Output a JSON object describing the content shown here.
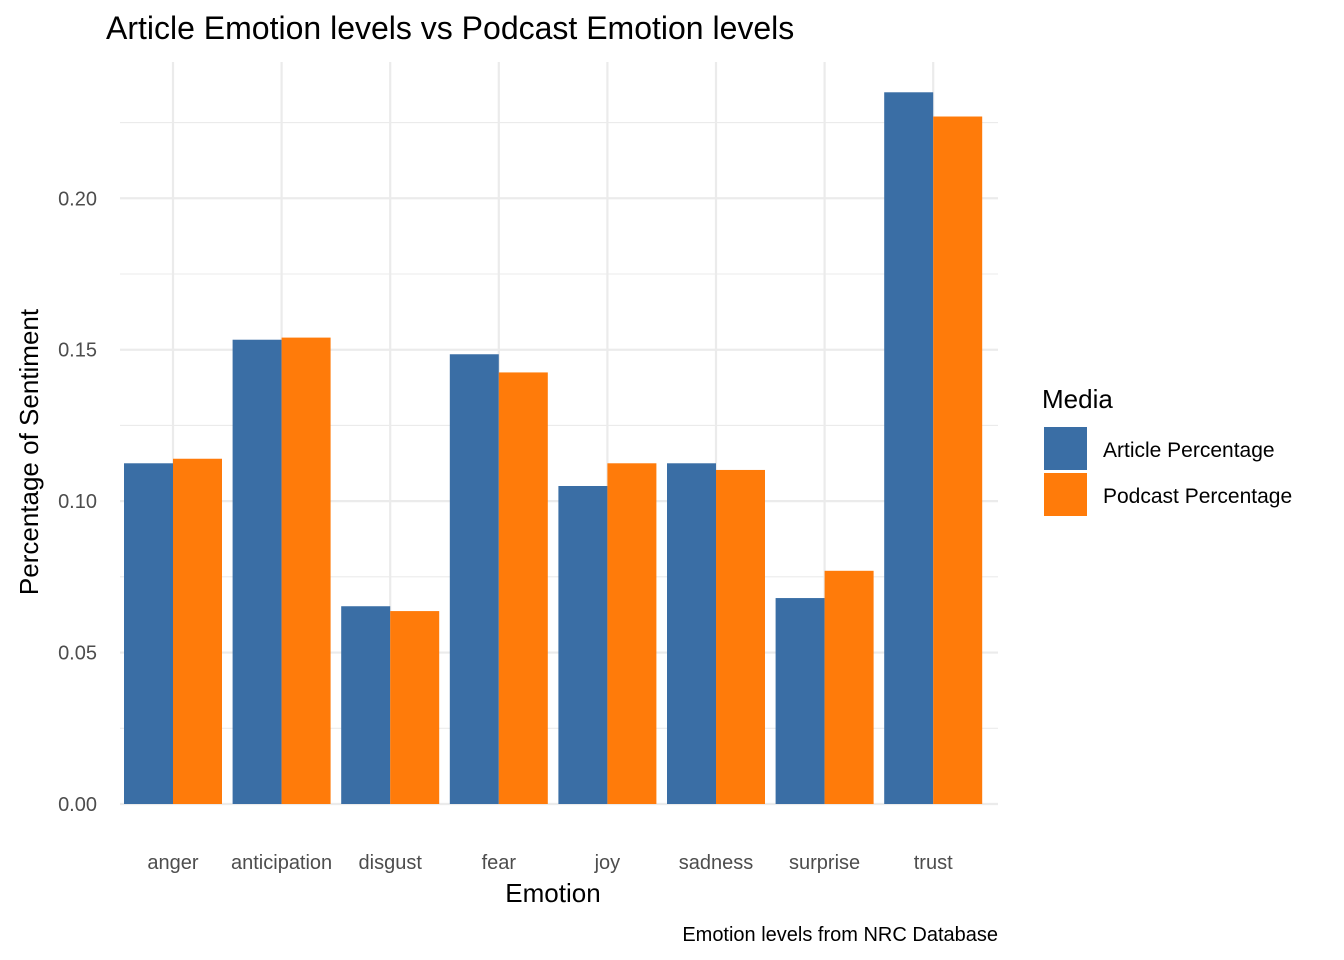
{
  "chart_data": {
    "type": "bar",
    "title": "Article Emotion levels vs Podcast Emotion levels",
    "xlabel": "Emotion",
    "ylabel": "Percentage of Sentiment",
    "caption": "Emotion levels from NRC Database",
    "categories": [
      "anger",
      "anticipation",
      "disgust",
      "fear",
      "joy",
      "sadness",
      "surprise",
      "trust"
    ],
    "series": [
      {
        "name": "Article Percentage",
        "color": "#3a6ea5",
        "values": [
          0.1125,
          0.1533,
          0.0653,
          0.1485,
          0.105,
          0.1125,
          0.068,
          0.235
        ]
      },
      {
        "name": "Podcast Percentage",
        "color": "#ff7b0a",
        "values": [
          0.114,
          0.154,
          0.0637,
          0.1425,
          0.1125,
          0.1103,
          0.077,
          0.227
        ]
      }
    ],
    "ylim": [
      0,
      0.245
    ],
    "y_ticks": [
      0.0,
      0.05,
      0.1,
      0.15,
      0.2
    ],
    "y_tick_labels": [
      "0.00",
      "0.05",
      "0.10",
      "0.15",
      "0.20"
    ],
    "legend": {
      "title": "Media",
      "position": "right"
    },
    "grid": true,
    "theme": "minimal"
  }
}
